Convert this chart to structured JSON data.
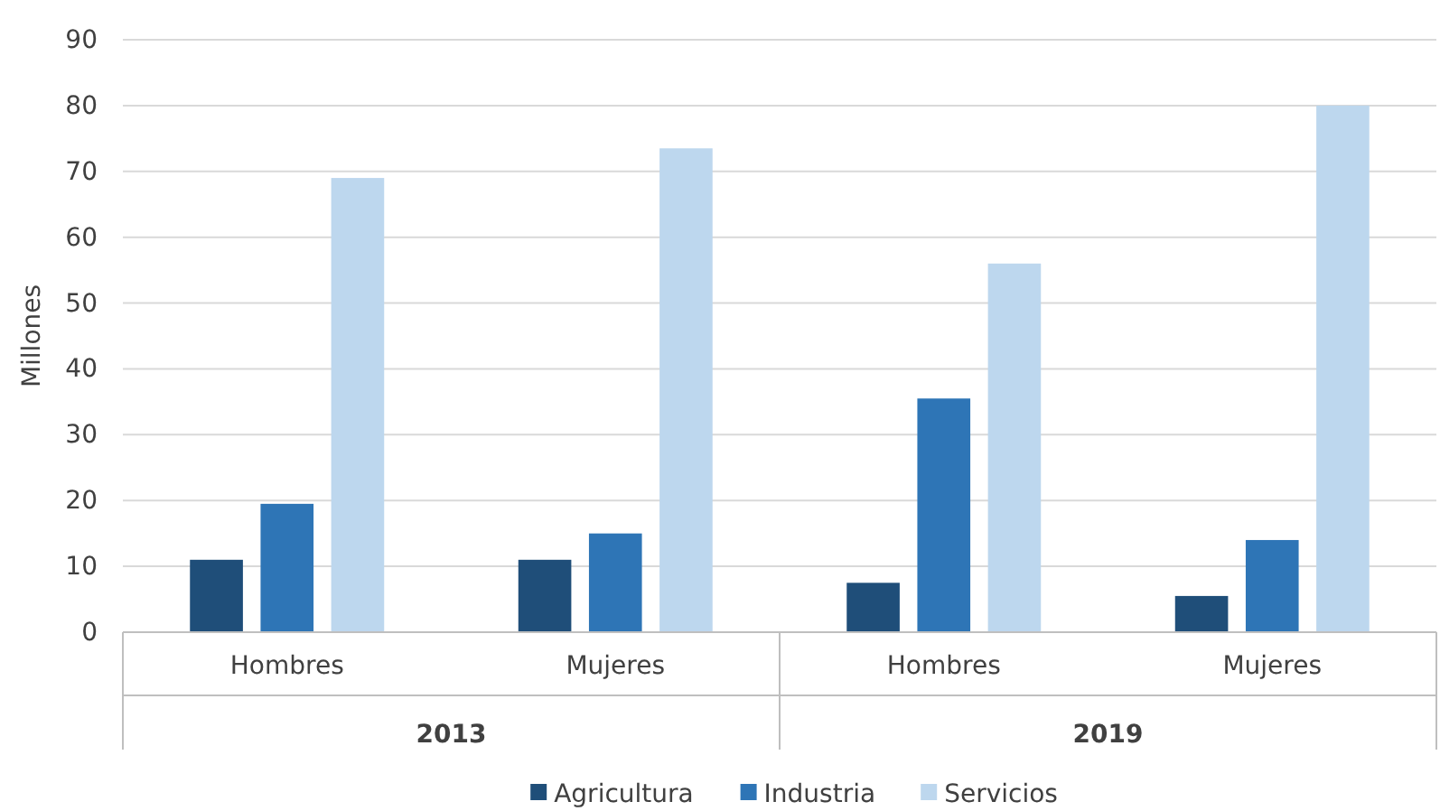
{
  "chart_data": {
    "type": "bar",
    "ylabel": "Millones",
    "categories": [
      "Hombres",
      "Mujeres",
      "Hombres",
      "Mujeres"
    ],
    "series": [
      {
        "name": "Agricultura",
        "color": "#1f4e79",
        "values": [
          11,
          11,
          7.5,
          5.5
        ]
      },
      {
        "name": "Industria",
        "color": "#2e75b6",
        "values": [
          19.5,
          15,
          35.5,
          14
        ]
      },
      {
        "name": "Servicios",
        "color": "#bdd7ee",
        "values": [
          69,
          73.5,
          56,
          80
        ]
      }
    ],
    "ylim": [
      0,
      90
    ],
    "yticks": [
      0,
      10,
      20,
      30,
      40,
      50,
      60,
      70,
      80,
      90
    ],
    "grid": "y",
    "legend": "bottom",
    "annotations": [
      "2013",
      "2019"
    ]
  }
}
